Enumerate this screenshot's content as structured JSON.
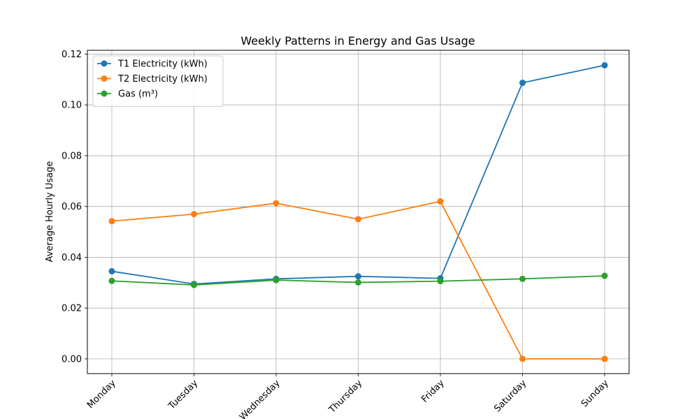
{
  "chart_data": {
    "type": "line",
    "title": "Weekly Patterns in Energy and Gas Usage",
    "xlabel": "",
    "ylabel": "Average Hourly Usage",
    "categories": [
      "Monday",
      "Tuesday",
      "Wednesday",
      "Thursday",
      "Friday",
      "Saturday",
      "Sunday"
    ],
    "ylim": [
      -0.0058,
      0.1215
    ],
    "yticks": [
      0.0,
      0.02,
      0.04,
      0.06,
      0.08,
      0.1,
      0.12
    ],
    "ytick_labels": [
      "0.00",
      "0.02",
      "0.04",
      "0.06",
      "0.08",
      "0.10",
      "0.12"
    ],
    "grid": true,
    "legend_position": "top-left",
    "series": [
      {
        "name": "T1 Electricity (kWh)",
        "color": "#1f77b4",
        "values": [
          0.0345,
          0.0295,
          0.0315,
          0.0325,
          0.0317,
          0.1087,
          0.1156
        ]
      },
      {
        "name": "T2 Electricity (kWh)",
        "color": "#ff7f0e",
        "values": [
          0.0542,
          0.057,
          0.0613,
          0.055,
          0.062,
          0.0,
          0.0
        ]
      },
      {
        "name": "Gas (m³)",
        "color": "#2ca02c",
        "values": [
          0.0307,
          0.0291,
          0.031,
          0.0301,
          0.0306,
          0.0315,
          0.0327
        ]
      }
    ]
  }
}
